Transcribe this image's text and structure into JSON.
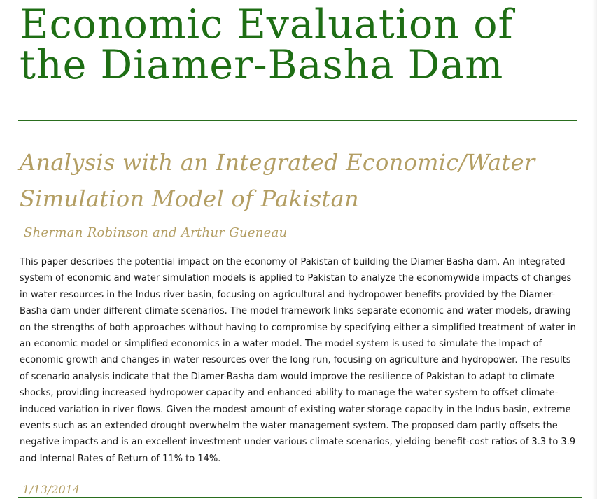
{
  "document": {
    "title_line1": "Economic Evaluation of",
    "title_line2": "the Diamer-Basha Dam",
    "subtitle_line1": "Analysis with an Integrated Economic/Water",
    "subtitle_line2": "Simulation Model of Pakistan",
    "authors": "Sherman Robinson and Arthur Gueneau",
    "abstract": "This paper describes the potential impact on the economy of Pakistan of building the Diamer-Basha dam. An integrated system of economic and water simulation models is applied to Pakistan to analyze the economywide impacts of changes in water resources in the Indus river basin, focusing on agricultural and hydropower benefits provided by the Diamer-Basha dam under different climate scenarios. The model framework links separate economic and water models, drawing on the strengths of both approaches without having to compromise by specifying either a simplified treatment of water in an economic model or simplified economics in a water model. The model system is used to simulate the impact of economic growth and changes in water resources over the long run, focusing on agriculture and hydropower. The results of scenario analysis indicate that the Diamer-Basha dam would improve the resilience of Pakistan to adapt to climate shocks, providing increased hydropower capacity and enhanced ability to manage the water system to offset climate-induced variation in river flows. Given the modest amount of existing water storage capacity in the Indus basin, extreme events such as an extended drought overwhelm the water management system. The proposed dam partly offsets the negative impacts and is an excellent investment under various climate scenarios, yielding benefit-cost ratios of 3.3 to 3.9 and Internal Rates of Return of 11% to 14%.",
    "date": "1/13/2014"
  },
  "colors": {
    "title": "#1e6e14",
    "accent": "#b39e63",
    "rule": "#2a6e1e",
    "body_text": "#1a1a1a"
  }
}
